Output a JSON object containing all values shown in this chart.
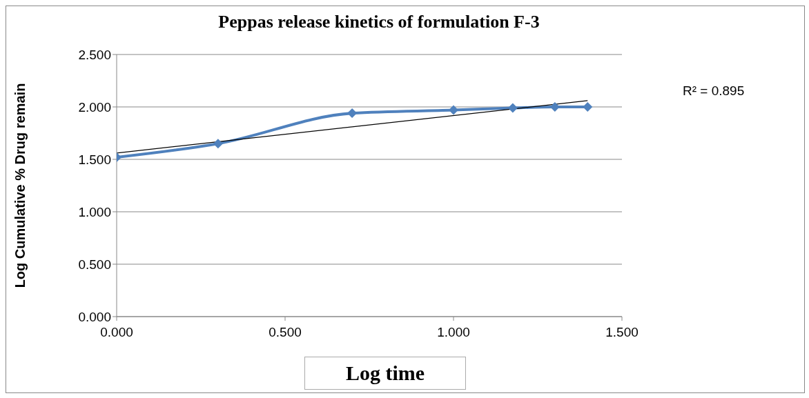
{
  "chart_data": {
    "type": "line",
    "title": "Peppas release kinetics of formulation F-3",
    "xlabel": "Log time",
    "ylabel": "Log Cumulative % Drug remain",
    "annotations": [
      "R² = 0.895"
    ],
    "series": [
      {
        "color": "#4f81bd",
        "marker": "diamond",
        "x": [
          0,
          0.301,
          0.699,
          1.0,
          1.176,
          1.301,
          1.398
        ],
        "values": [
          1.52,
          1.65,
          1.94,
          1.97,
          1.99,
          2.0,
          2.0
        ]
      },
      {
        "type": "line",
        "color": "#000000",
        "marker": "none",
        "x": [
          0,
          1.398
        ],
        "values": [
          1.56,
          2.06
        ]
      }
    ],
    "xlim": [
      0,
      1.5
    ],
    "xticks": [
      {
        "value": 0,
        "label": "0.000"
      },
      {
        "value": 0.5,
        "label": "0.500"
      },
      {
        "value": 1,
        "label": "1.000"
      },
      {
        "value": 1.5,
        "label": "1.500"
      }
    ],
    "ylim": [
      0,
      2.5
    ],
    "yticks": [
      {
        "value": 0,
        "label": "0.000"
      },
      {
        "value": 0.5,
        "label": "0.500"
      },
      {
        "value": 1,
        "label": "1.000"
      },
      {
        "value": 1.5,
        "label": "1.500"
      },
      {
        "value": 2,
        "label": "2.000"
      },
      {
        "value": 2.5,
        "label": "2.500"
      }
    ],
    "grid": "y",
    "legend": false,
    "line_style": "solid"
  }
}
